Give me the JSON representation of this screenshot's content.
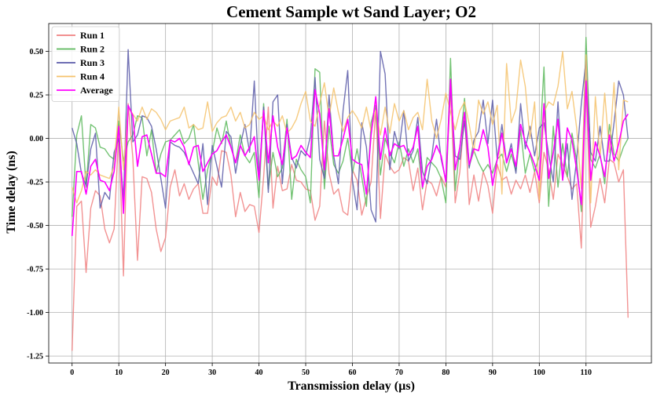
{
  "chart_data": {
    "type": "line",
    "title": "Cement Sample wt Sand Layer; O2",
    "xlabel": "Transmission delay (µs)",
    "ylabel": "Time delay (ns)",
    "xlim": [
      -5,
      124
    ],
    "ylim": [
      -1.29,
      0.66
    ],
    "x_ticks": [
      0,
      10,
      20,
      30,
      40,
      50,
      60,
      70,
      80,
      90,
      100,
      110
    ],
    "x_tick_labels": [
      "0",
      "10",
      "20",
      "30",
      "40",
      "50",
      "60",
      "70",
      "80",
      "90",
      "100",
      "110"
    ],
    "y_ticks": [
      -1.25,
      -1.0,
      -0.75,
      -0.5,
      -0.25,
      0.0,
      0.25,
      0.5
    ],
    "y_tick_labels": [
      "-1.25",
      "-1.00",
      "-0.75",
      "-0.50",
      "-0.25",
      "0.00",
      "0.25",
      "0.50"
    ],
    "grid": true,
    "legend_position": "top-left",
    "x": [
      0,
      1,
      2,
      3,
      4,
      5,
      6,
      7,
      8,
      9,
      10,
      11,
      12,
      13,
      14,
      15,
      16,
      17,
      18,
      19,
      20,
      21,
      22,
      23,
      24,
      25,
      26,
      27,
      28,
      29,
      30,
      31,
      32,
      33,
      34,
      35,
      36,
      37,
      38,
      39,
      40,
      41,
      42,
      43,
      44,
      45,
      46,
      47,
      48,
      49,
      50,
      51,
      52,
      53,
      54,
      55,
      56,
      57,
      58,
      59,
      60,
      61,
      62,
      63,
      64,
      65,
      66,
      67,
      68,
      69,
      70,
      71,
      72,
      73,
      74,
      75,
      76,
      77,
      78,
      79,
      80,
      81,
      82,
      83,
      84,
      85,
      86,
      87,
      88,
      89,
      90,
      91,
      92,
      93,
      94,
      95,
      96,
      97,
      98,
      99,
      100,
      101,
      102,
      103,
      104,
      105,
      106,
      107,
      108,
      109,
      110,
      111,
      112,
      113,
      114,
      115,
      116,
      117,
      118,
      119
    ],
    "series": [
      {
        "name": "Run 1",
        "color": "#f08080",
        "values": [
          -1.22,
          -0.39,
          -0.36,
          -0.77,
          -0.4,
          -0.3,
          -0.33,
          -0.52,
          -0.6,
          -0.52,
          0.05,
          -0.79,
          0.2,
          -0.11,
          -0.7,
          -0.22,
          -0.23,
          -0.31,
          -0.52,
          -0.65,
          -0.57,
          -0.28,
          -0.18,
          -0.33,
          -0.26,
          -0.35,
          -0.29,
          -0.26,
          -0.43,
          -0.43,
          -0.22,
          -0.27,
          -0.07,
          -0.08,
          -0.21,
          -0.45,
          -0.31,
          -0.42,
          -0.38,
          -0.39,
          -0.54,
          -0.22,
          0.18,
          -0.4,
          -0.16,
          -0.3,
          -0.29,
          -0.15,
          -0.24,
          -0.25,
          -0.29,
          -0.3,
          -0.47,
          -0.39,
          0.1,
          -0.2,
          -0.32,
          -0.29,
          -0.42,
          -0.44,
          -0.18,
          -0.24,
          -0.44,
          -0.34,
          -0.25,
          0.17,
          -0.46,
          -0.09,
          -0.16,
          -0.2,
          -0.18,
          -0.11,
          -0.13,
          -0.3,
          -0.17,
          -0.41,
          -0.24,
          -0.26,
          -0.33,
          -0.22,
          -0.28,
          0.28,
          -0.37,
          -0.19,
          0.15,
          -0.38,
          -0.21,
          -0.36,
          -0.19,
          -0.27,
          -0.43,
          -0.15,
          -0.24,
          -0.22,
          -0.32,
          -0.24,
          -0.29,
          -0.21,
          -0.31,
          -0.19,
          -0.37,
          -0.08,
          -0.18,
          -0.35,
          -0.09,
          -0.15,
          -0.22,
          -0.29,
          -0.26,
          -0.63,
          0.34,
          -0.51,
          -0.39,
          -0.23,
          -0.37,
          -0.12,
          -0.14,
          -0.25,
          -0.18,
          -1.03
        ]
      },
      {
        "name": "Run 2",
        "color": "#5cb85c",
        "values": [
          -0.45,
          0.02,
          0.13,
          -0.28,
          0.08,
          0.06,
          -0.05,
          -0.06,
          -0.1,
          -0.12,
          0.1,
          -0.13,
          -0.02,
          0.02,
          0.13,
          0.12,
          -0.1,
          0.05,
          -0.2,
          -0.09,
          -0.02,
          -0.01,
          0.02,
          0.05,
          -0.03,
          0.0,
          0.08,
          -0.14,
          -0.35,
          -0.18,
          -0.08,
          0.06,
          -0.03,
          0.1,
          -0.05,
          -0.14,
          0.02,
          -0.1,
          -0.14,
          -0.08,
          -0.34,
          0.2,
          -0.29,
          -0.08,
          -0.22,
          -0.17,
          0.11,
          -0.35,
          -0.12,
          -0.18,
          -0.22,
          -0.37,
          0.4,
          0.38,
          -0.29,
          0.07,
          -0.15,
          -0.2,
          -0.13,
          0.0,
          -0.2,
          -0.06,
          -0.22,
          -0.39,
          0.09,
          0.19,
          -0.21,
          0.0,
          -0.08,
          -0.14,
          -0.02,
          -0.16,
          -0.06,
          -0.14,
          -0.06,
          -0.29,
          -0.11,
          -0.14,
          -0.17,
          -0.23,
          -0.37,
          0.46,
          -0.3,
          -0.05,
          0.23,
          -0.16,
          -0.07,
          -0.14,
          -0.19,
          -0.15,
          -0.2,
          -0.12,
          -0.09,
          -0.19,
          -0.09,
          -0.19,
          0.05,
          -0.2,
          -0.09,
          -0.19,
          -0.1,
          0.41,
          -0.39,
          0.07,
          -0.28,
          -0.03,
          -0.22,
          0.03,
          -0.13,
          -0.42,
          0.58,
          -0.12,
          -0.17,
          -0.09,
          -0.26,
          0.08,
          -0.09,
          -0.13,
          -0.05,
          0.0
        ]
      },
      {
        "name": "Run 3",
        "color": "#5a5aa8",
        "values": [
          0.06,
          -0.03,
          -0.2,
          -0.27,
          -0.06,
          0.03,
          -0.4,
          -0.31,
          -0.35,
          -0.08,
          0.0,
          -0.35,
          0.51,
          -0.02,
          0.02,
          0.13,
          0.12,
          0.07,
          -0.06,
          -0.23,
          -0.4,
          -0.02,
          -0.04,
          -0.05,
          -0.08,
          -0.14,
          -0.2,
          -0.26,
          -0.03,
          -0.38,
          -0.04,
          -0.16,
          -0.28,
          0.04,
          0.01,
          -0.2,
          -0.04,
          0.08,
          -0.08,
          0.33,
          -0.23,
          0.18,
          -0.31,
          0.21,
          0.25,
          -0.26,
          0.08,
          -0.11,
          -0.17,
          -0.07,
          -0.1,
          0.01,
          0.35,
          -0.12,
          -0.23,
          0.25,
          -0.1,
          -0.26,
          0.16,
          0.39,
          -0.24,
          -0.41,
          0.09,
          -0.05,
          -0.41,
          -0.48,
          0.5,
          0.37,
          -0.18,
          0.04,
          -0.06,
          0.16,
          -0.13,
          -0.07,
          0.12,
          -0.19,
          -0.26,
          -0.1,
          0.11,
          -0.12,
          -0.24,
          0.3,
          -0.1,
          -0.12,
          0.1,
          -0.17,
          -0.01,
          0.04,
          0.22,
          -0.03,
          0.22,
          -0.12,
          0.08,
          -0.14,
          -0.03,
          -0.2,
          0.2,
          -0.06,
          0.07,
          -0.1,
          0.06,
          0.09,
          -0.09,
          -0.25,
          0.21,
          -0.24,
          -0.03,
          -0.35,
          -0.12,
          0.2,
          0.45,
          -0.08,
          -0.13,
          0.07,
          -0.13,
          -0.13,
          0.09,
          0.33,
          0.25,
          0.0
        ]
      },
      {
        "name": "Run 4",
        "color": "#f5c26b",
        "values": [
          -0.28,
          -0.37,
          -0.3,
          -0.19,
          -0.21,
          -0.18,
          -0.21,
          -0.22,
          -0.23,
          -0.16,
          0.18,
          -0.18,
          0.18,
          0.14,
          0.1,
          0.18,
          0.11,
          0.17,
          0.15,
          0.11,
          0.05,
          0.1,
          0.11,
          0.12,
          0.18,
          0.06,
          0.08,
          0.05,
          0.06,
          0.21,
          0.04,
          0.09,
          0.12,
          0.13,
          0.18,
          0.1,
          0.15,
          0.06,
          0.08,
          0.15,
          0.11,
          0.13,
          0.05,
          0.1,
          0.07,
          0.13,
          0.03,
          0.06,
          0.11,
          0.2,
          0.27,
          0.1,
          0.07,
          0.2,
          0.32,
          0.12,
          0.29,
          0.15,
          0.04,
          0.12,
          0.16,
          0.12,
          0.06,
          0.18,
          0.04,
          0.16,
          0.02,
          0.18,
          0.03,
          0.2,
          0.1,
          0.16,
          0.05,
          0.12,
          0.15,
          0.05,
          0.34,
          0.1,
          0.0,
          0.11,
          0.26,
          0.15,
          0.05,
          0.16,
          0.21,
          0.08,
          -0.08,
          0.22,
          0.14,
          0.21,
          0.08,
          0.19,
          -0.32,
          0.43,
          0.09,
          0.17,
          0.45,
          0.3,
          0.0,
          0.21,
          -0.35,
          0.15,
          0.21,
          0.19,
          0.3,
          0.5,
          0.17,
          0.27,
          0.06,
          -0.29,
          0.48,
          -0.37,
          0.24,
          -0.11,
          0.26,
          -0.08,
          0.32,
          -0.18,
          0.22,
          0.21
        ]
      },
      {
        "name": "Average",
        "color": "#ff00ff",
        "values": [
          -0.56,
          -0.19,
          -0.19,
          -0.32,
          -0.16,
          -0.12,
          -0.24,
          -0.25,
          -0.3,
          -0.19,
          0.07,
          -0.43,
          0.19,
          0.13,
          -0.16,
          0.01,
          0.02,
          -0.09,
          -0.2,
          -0.2,
          -0.22,
          -0.01,
          -0.02,
          0.0,
          -0.05,
          -0.15,
          -0.05,
          -0.04,
          -0.19,
          -0.14,
          -0.09,
          -0.07,
          -0.02,
          0.02,
          -0.05,
          -0.14,
          -0.04,
          -0.1,
          -0.05,
          0.01,
          -0.24,
          0.16,
          -0.14,
          0.13,
          -0.05,
          -0.15,
          0.06,
          -0.12,
          -0.1,
          -0.04,
          -0.08,
          -0.11,
          0.28,
          0.14,
          -0.18,
          0.17,
          -0.1,
          -0.1,
          0.0,
          0.11,
          -0.12,
          -0.14,
          -0.15,
          -0.32,
          0.02,
          0.24,
          -0.12,
          0.06,
          -0.1,
          -0.03,
          -0.05,
          -0.04,
          -0.1,
          -0.05,
          0.07,
          -0.28,
          -0.16,
          -0.12,
          -0.04,
          -0.1,
          -0.25,
          0.34,
          -0.18,
          -0.05,
          0.15,
          -0.15,
          -0.06,
          -0.07,
          0.05,
          -0.05,
          -0.27,
          -0.12,
          0.03,
          -0.14,
          -0.06,
          -0.16,
          0.08,
          -0.02,
          -0.08,
          -0.15,
          -0.24,
          0.2,
          -0.23,
          -0.08,
          0.11,
          -0.24,
          0.06,
          -0.01,
          -0.18,
          -0.38,
          0.33,
          -0.24,
          -0.02,
          -0.1,
          -0.22,
          0.02,
          -0.13,
          -0.03,
          0.1,
          0.14
        ]
      }
    ]
  }
}
